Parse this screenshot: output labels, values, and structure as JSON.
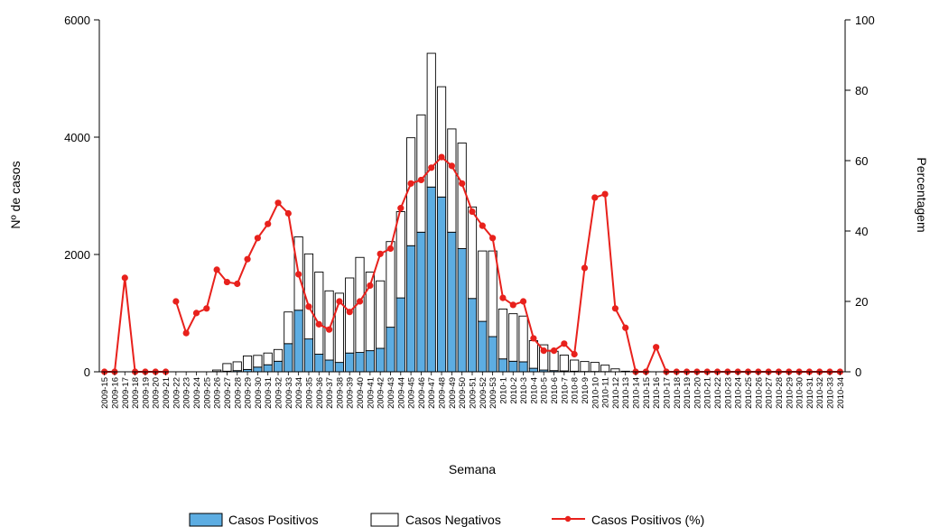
{
  "chart_data": {
    "type": "bar",
    "title": "",
    "xlabel": "Semana",
    "ylabel": "Nº de casos",
    "y2label": "Percentagem",
    "ylim": [
      0,
      6000
    ],
    "y2lim": [
      0,
      100
    ],
    "yticks": [
      0,
      2000,
      4000,
      6000
    ],
    "y2ticks": [
      0,
      20,
      40,
      60,
      80,
      100
    ],
    "categories": [
      "2009-15",
      "2009-16",
      "2009-17",
      "2009-18",
      "2009-19",
      "2009-20",
      "2009-21",
      "2009-22",
      "2009-23",
      "2009-24",
      "2009-25",
      "2009-26",
      "2009-27",
      "2009-28",
      "2009-29",
      "2009-30",
      "2009-31",
      "2009-32",
      "2009-33",
      "2009-34",
      "2009-35",
      "2009-36",
      "2009-37",
      "2009-38",
      "2009-39",
      "2009-40",
      "2009-41",
      "2009-42",
      "2009-43",
      "2009-44",
      "2009-45",
      "2009-46",
      "2009-47",
      "2009-48",
      "2009-49",
      "2009-50",
      "2009-51",
      "2009-52",
      "2009-53",
      "2010-1",
      "2010-2",
      "2010-3",
      "2010-4",
      "2010-5",
      "2010-6",
      "2010-7",
      "2010-8",
      "2010-9",
      "2010-10",
      "2010-11",
      "2010-12",
      "2010-13",
      "2010-14",
      "2010-15",
      "2010-16",
      "2010-17",
      "2010-18",
      "2010-19",
      "2010-20",
      "2010-21",
      "2010-22",
      "2010-23",
      "2010-24",
      "2010-25",
      "2010-26",
      "2010-27",
      "2010-28",
      "2010-29",
      "2010-30",
      "2010-31",
      "2010-32",
      "2010-33",
      "2010-34"
    ],
    "xtick_labels": [
      "2009-15",
      "2009-16",
      "2009-17",
      "2009-18",
      "2009-19",
      "2009-20",
      "2009-21",
      "2009-22",
      "2009-23",
      "2009-24",
      "2009-25",
      "2009-26",
      "2009-27",
      "2009-28",
      "2009-29",
      "2009-30",
      "2009-31",
      "2009-32",
      "2009-33",
      "2009-34",
      "2009-35",
      "2009-36",
      "2009-37",
      "2009-38",
      "2009-39",
      "2009-40",
      "2009-41",
      "2009-42",
      "2009-43",
      "2009-44",
      "2009-45",
      "2009-46",
      "2009-47",
      "2009-48",
      "2009-49",
      "2009-50",
      "2009-51",
      "2009-52",
      "2009-53",
      "2010-1",
      "2010-2",
      "2010-3",
      "2010-4",
      "2010-5",
      "2010-6",
      "2010-7",
      "2010-8",
      "2010-9",
      "2010-10",
      "2010-11",
      "2010-12",
      "2010-13",
      "2010-14",
      "2010-15",
      "2010-16",
      "2010-17",
      "2010-18",
      "2010-19",
      "2010-20",
      "2010-21",
      "2010-22",
      "2010-23",
      "2010-24",
      "2010-25",
      "2010-26",
      "2010-27",
      "2010-28",
      "2010-29",
      "2010-30",
      "2010-31",
      "2010-32",
      "2010-33",
      "2010-34"
    ],
    "series": [
      {
        "name": "Casos Positivos",
        "kind": "bar",
        "axis": "left",
        "color": "#5dade2",
        "values": [
          0,
          0,
          0,
          0,
          0,
          0,
          0,
          0,
          0,
          0,
          0,
          5,
          10,
          20,
          40,
          80,
          120,
          180,
          480,
          1050,
          560,
          300,
          200,
          160,
          320,
          330,
          360,
          400,
          760,
          1260,
          2150,
          2380,
          3150,
          2980,
          2380,
          2100,
          1250,
          860,
          600,
          220,
          180,
          170,
          60,
          30,
          20,
          15,
          10,
          5,
          5,
          3,
          0,
          0,
          0,
          0,
          0,
          0,
          0,
          0,
          0,
          0,
          0,
          0,
          0,
          0,
          0,
          0,
          0,
          0,
          0,
          0,
          0,
          0,
          0
        ]
      },
      {
        "name": "Casos Negativos",
        "kind": "bar",
        "axis": "left",
        "color": "#ffffff",
        "values": [
          0,
          0,
          0,
          0,
          0,
          0,
          0,
          0,
          0,
          0,
          0,
          25,
          130,
          150,
          230,
          200,
          200,
          200,
          540,
          1250,
          1450,
          1400,
          1180,
          1180,
          1280,
          1620,
          1340,
          1150,
          1460,
          1470,
          1840,
          2000,
          2280,
          1880,
          1760,
          1800,
          1560,
          1200,
          1460,
          850,
          810,
          780,
          470,
          430,
          330,
          270,
          190,
          170,
          155,
          110,
          50,
          10,
          5,
          2,
          0,
          0,
          0,
          0,
          0,
          0,
          0,
          0,
          0,
          0,
          0,
          0,
          0,
          0,
          0,
          0,
          0,
          0,
          0
        ]
      },
      {
        "name": "Casos Positivos (%)",
        "kind": "line",
        "axis": "right",
        "color": "#e8211c",
        "values": [
          0,
          0,
          26.7,
          0,
          0,
          0,
          0,
          20,
          11,
          16.7,
          18,
          29,
          25.5,
          25,
          32,
          38,
          42,
          48,
          45,
          27.7,
          18.5,
          13.5,
          12,
          20,
          17,
          20,
          24.5,
          33.5,
          35,
          46.5,
          53.5,
          54.5,
          58,
          61,
          58.5,
          53.5,
          45.5,
          41.5,
          38,
          21,
          19,
          20,
          9.5,
          6,
          6,
          8,
          5,
          29.5,
          49.5,
          50.5,
          18,
          12.5,
          0,
          0,
          7,
          0,
          0,
          0,
          0,
          0,
          0,
          0,
          0,
          0,
          0,
          0,
          0,
          0,
          0,
          0,
          0,
          0,
          0
        ]
      }
    ],
    "legend": {
      "position": "bottom",
      "items": [
        "Casos Positivos",
        "Casos Negativos",
        "Casos Positivos (%)"
      ]
    },
    "grid": false
  }
}
